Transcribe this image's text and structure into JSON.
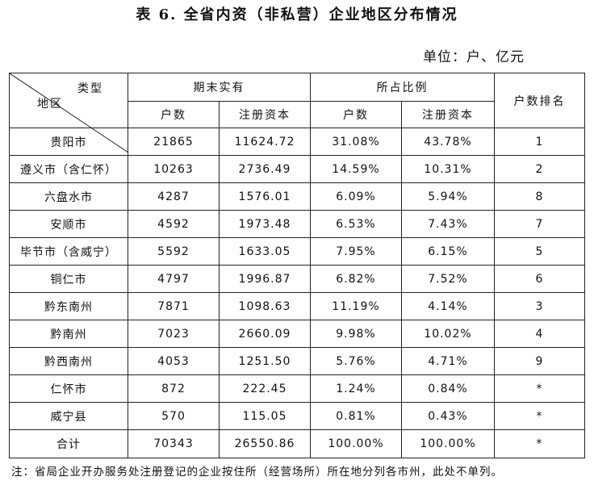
{
  "title": "表 6. 全省内资（非私营）企业地区分布情况",
  "unit": "单位：户、亿元",
  "headers": {
    "type_label": "类型",
    "region_label": "地区",
    "end_period": "期末实有",
    "share": "所占比例",
    "rank": "户数排名",
    "households": "户数",
    "registered_capital": "注册资本",
    "households_share": "户数",
    "capital_share": "注册资本"
  },
  "rows": [
    {
      "region": "贵阳市",
      "count": "21865",
      "capital": "11624.72",
      "count_pct": "31.08%",
      "capital_pct": "43.78%",
      "rank": "1"
    },
    {
      "region": "遵义市（含仁怀）",
      "count": "10263",
      "capital": "2736.49",
      "count_pct": "14.59%",
      "capital_pct": "10.31%",
      "rank": "2"
    },
    {
      "region": "六盘水市",
      "count": "4287",
      "capital": "1576.01",
      "count_pct": "6.09%",
      "capital_pct": "5.94%",
      "rank": "8"
    },
    {
      "region": "安顺市",
      "count": "4592",
      "capital": "1973.48",
      "count_pct": "6.53%",
      "capital_pct": "7.43%",
      "rank": "7"
    },
    {
      "region": "毕节市（含威宁）",
      "count": "5592",
      "capital": "1633.05",
      "count_pct": "7.95%",
      "capital_pct": "6.15%",
      "rank": "5"
    },
    {
      "region": "铜仁市",
      "count": "4797",
      "capital": "1996.87",
      "count_pct": "6.82%",
      "capital_pct": "7.52%",
      "rank": "6"
    },
    {
      "region": "黔东南州",
      "count": "7871",
      "capital": "1098.63",
      "count_pct": "11.19%",
      "capital_pct": "4.14%",
      "rank": "3"
    },
    {
      "region": "黔南州",
      "count": "7023",
      "capital": "2660.09",
      "count_pct": "9.98%",
      "capital_pct": "10.02%",
      "rank": "4"
    },
    {
      "region": "黔西南州",
      "count": "4053",
      "capital": "1251.50",
      "count_pct": "5.76%",
      "capital_pct": "4.71%",
      "rank": "9"
    },
    {
      "region": "仁怀市",
      "count": "872",
      "capital": "222.45",
      "count_pct": "1.24%",
      "capital_pct": "0.84%",
      "rank": "*"
    },
    {
      "region": "威宁县",
      "count": "570",
      "capital": "115.05",
      "count_pct": "0.81%",
      "capital_pct": "0.43%",
      "rank": "*"
    }
  ],
  "total": {
    "region": "合计",
    "count": "70343",
    "capital": "26550.86",
    "count_pct": "100.00%",
    "capital_pct": "100.00%",
    "rank": "*"
  },
  "note": "注：省局企业开办服务处注册登记的企业按住所（经营场所）所在地分列各市州，此处不单列。"
}
